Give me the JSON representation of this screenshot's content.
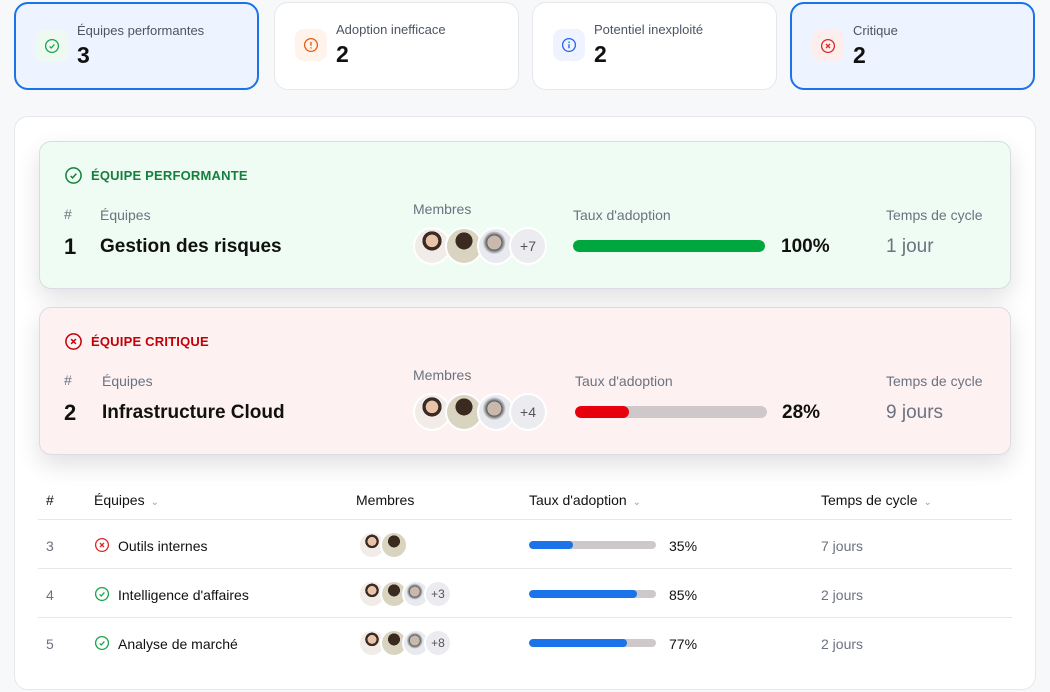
{
  "stats": [
    {
      "label": "Équipes performantes",
      "value": "3",
      "icon": "check-circle-icon",
      "color": "#16a34a",
      "bg": "#eefaf1",
      "selected": true
    },
    {
      "label": "Adoption inefficace",
      "value": "2",
      "icon": "alert-circle-icon",
      "color": "#ea580c",
      "bg": "#fff3eb",
      "selected": false
    },
    {
      "label": "Potentiel inexploité",
      "value": "2",
      "icon": "info-circle-icon",
      "color": "#2563eb",
      "bg": "#eef3ff",
      "selected": false
    },
    {
      "label": "Critique",
      "value": "2",
      "icon": "x-circle-icon",
      "color": "#dc2626",
      "bg": "#fdeeee",
      "selected": true
    }
  ],
  "highlights": [
    {
      "tag": "ÉQUIPE PERFORMANTE",
      "tag_color": "#15803d",
      "bg": "#effcf3",
      "hash": "#",
      "teams_label": "Équipes",
      "rank": "1",
      "name": "Gestion des risques",
      "members_label": "Membres",
      "more": "+7",
      "adoption_label": "Taux d'adoption",
      "adoption": 100,
      "adoption_text": "100%",
      "bar_color": "#00a63e",
      "cycle_label": "Temps de cycle",
      "cycle": "1 jour"
    },
    {
      "tag": "ÉQUIPE CRITIQUE",
      "tag_color": "#c10007",
      "bg": "#fef1f1",
      "hash": "#",
      "teams_label": "Équipes",
      "rank": "2",
      "name": "Infrastructure Cloud",
      "members_label": "Membres",
      "more": "+4",
      "adoption_label": "Taux d'adoption",
      "adoption": 28,
      "adoption_text": "28%",
      "bar_color": "#e7000b",
      "cycle_label": "Temps de cycle",
      "cycle": "9 jours"
    }
  ],
  "table": {
    "headers": {
      "rank": "#",
      "teams": "Équipes",
      "members": "Membres",
      "adoption": "Taux d'adoption",
      "cycle": "Temps de cycle"
    },
    "rows": [
      {
        "rank": "3",
        "status": "critical",
        "name": "Outils internes",
        "avatars": 2,
        "more": "",
        "adoption": 35,
        "adoption_text": "35%",
        "cycle": "7 jours"
      },
      {
        "rank": "4",
        "status": "good",
        "name": "Intelligence d'affaires",
        "avatars": 3,
        "more": "+3",
        "adoption": 85,
        "adoption_text": "85%",
        "cycle": "2 jours"
      },
      {
        "rank": "5",
        "status": "good",
        "name": "Analyse de marché",
        "avatars": 3,
        "more": "+8",
        "adoption": 77,
        "adoption_text": "77%",
        "cycle": "2 jours"
      }
    ]
  }
}
